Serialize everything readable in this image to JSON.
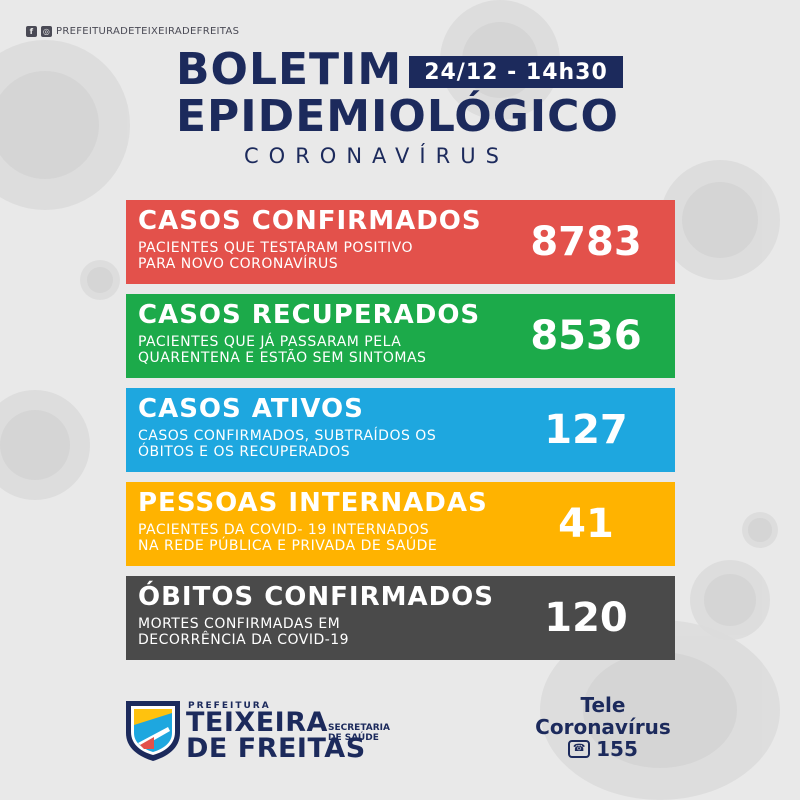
{
  "social": {
    "handle": "PREFEITURADETEIXEIRADEFREITAS",
    "facebook_icon": "f",
    "instagram_icon": "◎"
  },
  "header": {
    "title_line1": "BOLETIM",
    "title_line2": "EPIDEMIOLÓGICO",
    "subtitle": "CORONAVÍRUS",
    "date": "24/12 - 14h30"
  },
  "cards": [
    {
      "title": "CASOS CONFIRMADOS",
      "description": "PACIENTES QUE TESTARAM POSITIVO\nPARA NOVO CORONAVÍRUS",
      "value": "8783",
      "color": "#e3514b"
    },
    {
      "title": "CASOS RECUPERADOS",
      "description": "PACIENTES QUE JÁ PASSARAM PELA\nQUARENTENA E ESTÃO SEM SINTOMAS",
      "value": "8536",
      "color": "#1caa4a"
    },
    {
      "title": "CASOS ATIVOS",
      "description": "CASOS CONFIRMADOS, SUBTRAÍDOS OS\nÓBITOS E OS RECUPERADOS",
      "value": "127",
      "color": "#1ea7df"
    },
    {
      "title": "PESSOAS INTERNADAS",
      "description": "PACIENTES DA COVID- 19 INTERNADOS\nNA REDE PÚBLICA E PRIVADA DE SAÚDE",
      "value": "41",
      "color": "#ffb300"
    },
    {
      "title": "ÓBITOS CONFIRMADOS",
      "description": "MORTES CONFIRMADAS EM\nDECORRÊNCIA DA COVID-19",
      "value": "120",
      "color": "#4a4a4a"
    }
  ],
  "footer": {
    "prefeitura": "PREFEITURA",
    "city_line1": "TEIXEIRA",
    "city_line2": "DE FREITAS",
    "secretaria_line1": "SECRETARIA",
    "secretaria_line2": "DE SAÚDE",
    "tele_line1": "Tele",
    "tele_line2": "Coronavírus",
    "phone_number": "155"
  },
  "colors": {
    "navy": "#1c2a5c",
    "background": "#e9e9e9"
  }
}
